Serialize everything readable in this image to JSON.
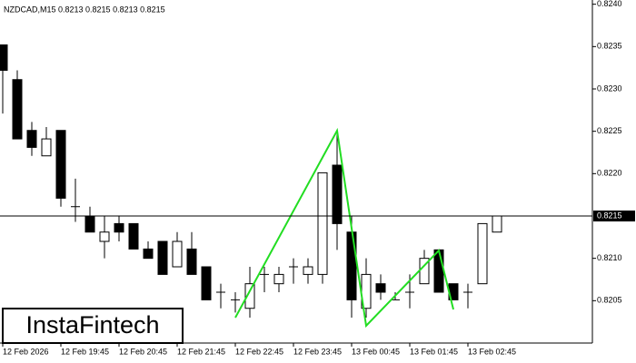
{
  "chart_data": {
    "type": "candlestick",
    "title": "NZDCAD,M15  0.8213 0.8215 0.8213 0.8215",
    "brand": "InstaFintech",
    "categories": [
      "12 Feb 2026",
      null,
      null,
      null,
      "12 Feb 19:45",
      null,
      null,
      null,
      "12 Feb 20:45",
      null,
      null,
      null,
      "12 Feb 21:45",
      null,
      null,
      null,
      "12 Feb 22:45",
      null,
      null,
      null,
      "12 Feb 23:45",
      null,
      null,
      null,
      "13 Feb 00:45",
      null,
      null,
      null,
      "13 Feb 01:45",
      null,
      null,
      null,
      "13 Feb 02:45",
      null,
      null
    ],
    "open": [
      0.82352,
      0.82311,
      0.82251,
      0.82221,
      0.82251,
      0.82161,
      0.8215,
      0.8212,
      0.82141,
      0.82141,
      0.82111,
      0.8212,
      0.8209,
      0.82111,
      0.8209,
      0.8206,
      0.82051,
      0.82041,
      0.82081,
      0.8207,
      0.8209,
      0.82081,
      0.82081,
      0.8221,
      0.82131,
      0.82041,
      0.8207,
      0.82051,
      0.8206,
      0.8207,
      0.8211,
      0.8207,
      0.8206,
      0.8207,
      0.82131
    ],
    "high": [
      0.82352,
      0.82322,
      0.82261,
      0.82255,
      0.82251,
      0.82194,
      0.82161,
      0.8215,
      0.8215,
      0.82141,
      0.8212,
      0.8212,
      0.82131,
      0.82131,
      0.8209,
      0.8207,
      0.8206,
      0.8209,
      0.8209,
      0.8209,
      0.821,
      0.821,
      0.82201,
      0.82251,
      0.8215,
      0.821,
      0.82081,
      0.8206,
      0.82081,
      0.8211,
      0.8211,
      0.8207,
      0.8207,
      0.82141,
      0.8215
    ],
    "low": [
      0.82271,
      0.82241,
      0.82221,
      0.82221,
      0.82161,
      0.82143,
      0.82131,
      0.821,
      0.8212,
      0.82111,
      0.821,
      0.82081,
      0.8209,
      0.82081,
      0.82051,
      0.82041,
      0.82036,
      0.8203,
      0.8206,
      0.8206,
      0.8207,
      0.8207,
      0.8207,
      0.8211,
      0.8203,
      0.8203,
      0.82051,
      0.82051,
      0.82041,
      0.8207,
      0.8206,
      0.82051,
      0.82041,
      0.8207,
      0.82131
    ],
    "close": [
      0.82322,
      0.82241,
      0.82231,
      0.82241,
      0.82171,
      0.82161,
      0.82131,
      0.82131,
      0.82131,
      0.82111,
      0.821,
      0.82081,
      0.8212,
      0.82081,
      0.82051,
      0.8206,
      0.82051,
      0.8207,
      0.82081,
      0.82081,
      0.8209,
      0.8209,
      0.82201,
      0.82141,
      0.82051,
      0.82081,
      0.8206,
      0.82051,
      0.8206,
      0.821,
      0.8206,
      0.82051,
      0.8206,
      0.82141,
      0.8215
    ],
    "ylim": [
      0.82,
      0.82405
    ],
    "yticks": [
      {
        "value": 0.824,
        "label": "0.8240"
      },
      0.8235,
      {
        "value": 0.823,
        "label": "0.8230"
      },
      0.8225,
      {
        "value": 0.822,
        "label": "0.8220"
      },
      {
        "value": 0.821,
        "label": "0.8210"
      },
      0.8205
    ],
    "current_price": 0.8215,
    "up_color": "#ffffff",
    "down_color": "#000000"
  }
}
